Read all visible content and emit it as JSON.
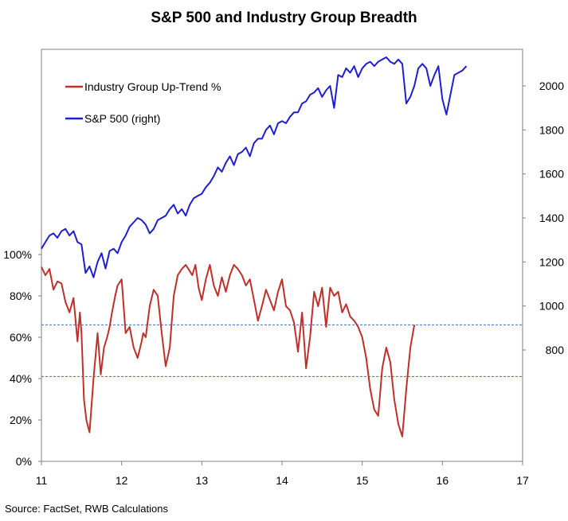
{
  "chart_data": {
    "type": "line",
    "title": "S&P 500 and Industry Group Breadth",
    "source": "Source: FactSet, RWB Calculations",
    "x_ticks": [
      "11",
      "12",
      "13",
      "14",
      "15",
      "16",
      "17"
    ],
    "xlim": [
      11,
      17
    ],
    "left_axis": {
      "ticks": [
        "0%",
        "20%",
        "40%",
        "60%",
        "80%",
        "100%"
      ],
      "ylim": [
        0,
        100
      ]
    },
    "right_axis": {
      "ticks": [
        "800",
        "1000",
        "1200",
        "1400",
        "1600",
        "1800",
        "2000"
      ],
      "ylim": [
        680,
        2200
      ]
    },
    "reference_lines": [
      66,
      41
    ],
    "legend_position": "top-left",
    "colors": {
      "breadth": "#c0302a",
      "spx": "#1f1fd2",
      "reference": "#3a6fb5"
    },
    "series": [
      {
        "name": "Industry Group Up-Trend %",
        "axis": "left",
        "x": [
          11.0,
          11.05,
          11.1,
          11.15,
          11.2,
          11.25,
          11.3,
          11.35,
          11.4,
          11.45,
          11.48,
          11.5,
          11.53,
          11.56,
          11.6,
          11.65,
          11.7,
          11.74,
          11.78,
          11.82,
          11.85,
          11.88,
          11.92,
          11.95,
          12.0,
          12.05,
          12.1,
          12.15,
          12.2,
          12.25,
          12.27,
          12.3,
          12.35,
          12.4,
          12.45,
          12.5,
          12.55,
          12.6,
          12.65,
          12.7,
          12.75,
          12.8,
          12.85,
          12.88,
          12.92,
          12.96,
          13.0,
          13.05,
          13.1,
          13.15,
          13.2,
          13.25,
          13.3,
          13.35,
          13.4,
          13.45,
          13.5,
          13.55,
          13.6,
          13.65,
          13.7,
          13.75,
          13.8,
          13.85,
          13.9,
          13.95,
          14.0,
          14.05,
          14.1,
          14.15,
          14.2,
          14.25,
          14.3,
          14.35,
          14.4,
          14.45,
          14.5,
          14.55,
          14.6,
          14.65,
          14.7,
          14.75,
          14.8,
          14.85,
          14.9,
          14.95,
          15.0,
          15.05,
          15.1,
          15.15,
          15.2,
          15.25,
          15.3,
          15.35,
          15.4,
          15.45,
          15.5,
          15.55,
          15.6,
          15.65,
          15.7,
          15.75,
          15.8,
          15.85,
          15.9,
          15.95,
          16.0,
          16.05,
          16.1,
          16.15,
          16.2,
          16.25,
          16.3
        ],
        "values": [
          94,
          90,
          93,
          83,
          87,
          86,
          77,
          72,
          79,
          58,
          72,
          62,
          30,
          20,
          14,
          40,
          62,
          42,
          55,
          60,
          65,
          72,
          80,
          85,
          88,
          62,
          65,
          55,
          50,
          58,
          62,
          60,
          75,
          83,
          80,
          62,
          46,
          55,
          80,
          90,
          93,
          95,
          92,
          90,
          95,
          84,
          78,
          88,
          95,
          85,
          80,
          89,
          82,
          90,
          95,
          93,
          90,
          85,
          88,
          78,
          68,
          75,
          83,
          78,
          73,
          82,
          88,
          75,
          73,
          67,
          53,
          72,
          45,
          60,
          82,
          75,
          84,
          65,
          84,
          80,
          82,
          72,
          76,
          70,
          68,
          65,
          60,
          50,
          35,
          25,
          22,
          45,
          55,
          48,
          30,
          18,
          12,
          35,
          55,
          66,
          66,
          66,
          66,
          66,
          66,
          66,
          66,
          66,
          66,
          66,
          66,
          66,
          66
        ],
        "values_end_index": 99
      },
      {
        "name": "S&P 500 (right)",
        "axis": "right",
        "x": [
          11.0,
          11.05,
          11.1,
          11.15,
          11.2,
          11.25,
          11.3,
          11.35,
          11.4,
          11.45,
          11.5,
          11.55,
          11.6,
          11.65,
          11.7,
          11.75,
          11.8,
          11.85,
          11.9,
          11.95,
          12.0,
          12.05,
          12.1,
          12.15,
          12.2,
          12.25,
          12.3,
          12.35,
          12.4,
          12.45,
          12.5,
          12.55,
          12.6,
          12.65,
          12.7,
          12.75,
          12.8,
          12.85,
          12.9,
          12.95,
          13.0,
          13.05,
          13.1,
          13.15,
          13.2,
          13.25,
          13.3,
          13.35,
          13.4,
          13.45,
          13.5,
          13.55,
          13.6,
          13.65,
          13.7,
          13.75,
          13.8,
          13.85,
          13.9,
          13.95,
          14.0,
          14.05,
          14.1,
          14.15,
          14.2,
          14.25,
          14.3,
          14.35,
          14.4,
          14.45,
          14.5,
          14.55,
          14.6,
          14.65,
          14.7,
          14.75,
          14.8,
          14.85,
          14.9,
          14.95,
          15.0,
          15.05,
          15.1,
          15.15,
          15.2,
          15.25,
          15.3,
          15.35,
          15.4,
          15.45,
          15.5,
          15.55,
          15.6,
          15.65,
          15.7,
          15.75,
          15.8,
          15.85,
          15.9,
          15.95,
          16.0,
          16.05,
          16.1,
          16.15,
          16.2,
          16.25,
          16.3
        ],
        "values": [
          1260,
          1290,
          1320,
          1330,
          1310,
          1340,
          1350,
          1320,
          1340,
          1290,
          1280,
          1150,
          1180,
          1130,
          1200,
          1240,
          1170,
          1250,
          1260,
          1240,
          1290,
          1320,
          1360,
          1380,
          1400,
          1390,
          1370,
          1330,
          1350,
          1390,
          1400,
          1410,
          1440,
          1460,
          1420,
          1440,
          1410,
          1460,
          1490,
          1500,
          1510,
          1540,
          1560,
          1590,
          1630,
          1610,
          1650,
          1680,
          1640,
          1690,
          1700,
          1720,
          1680,
          1740,
          1760,
          1760,
          1800,
          1820,
          1780,
          1830,
          1840,
          1830,
          1860,
          1880,
          1880,
          1920,
          1930,
          1960,
          1970,
          1990,
          1950,
          1980,
          2000,
          1900,
          2050,
          2040,
          2080,
          2060,
          2090,
          2040,
          2080,
          2100,
          2110,
          2090,
          2110,
          2120,
          2130,
          2110,
          2100,
          2120,
          2100,
          1920,
          1950,
          2000,
          2080,
          2100,
          2080,
          2000,
          2050,
          2090,
          1940,
          1870,
          1960,
          2050,
          2060,
          2070,
          2090
        ]
      }
    ]
  }
}
